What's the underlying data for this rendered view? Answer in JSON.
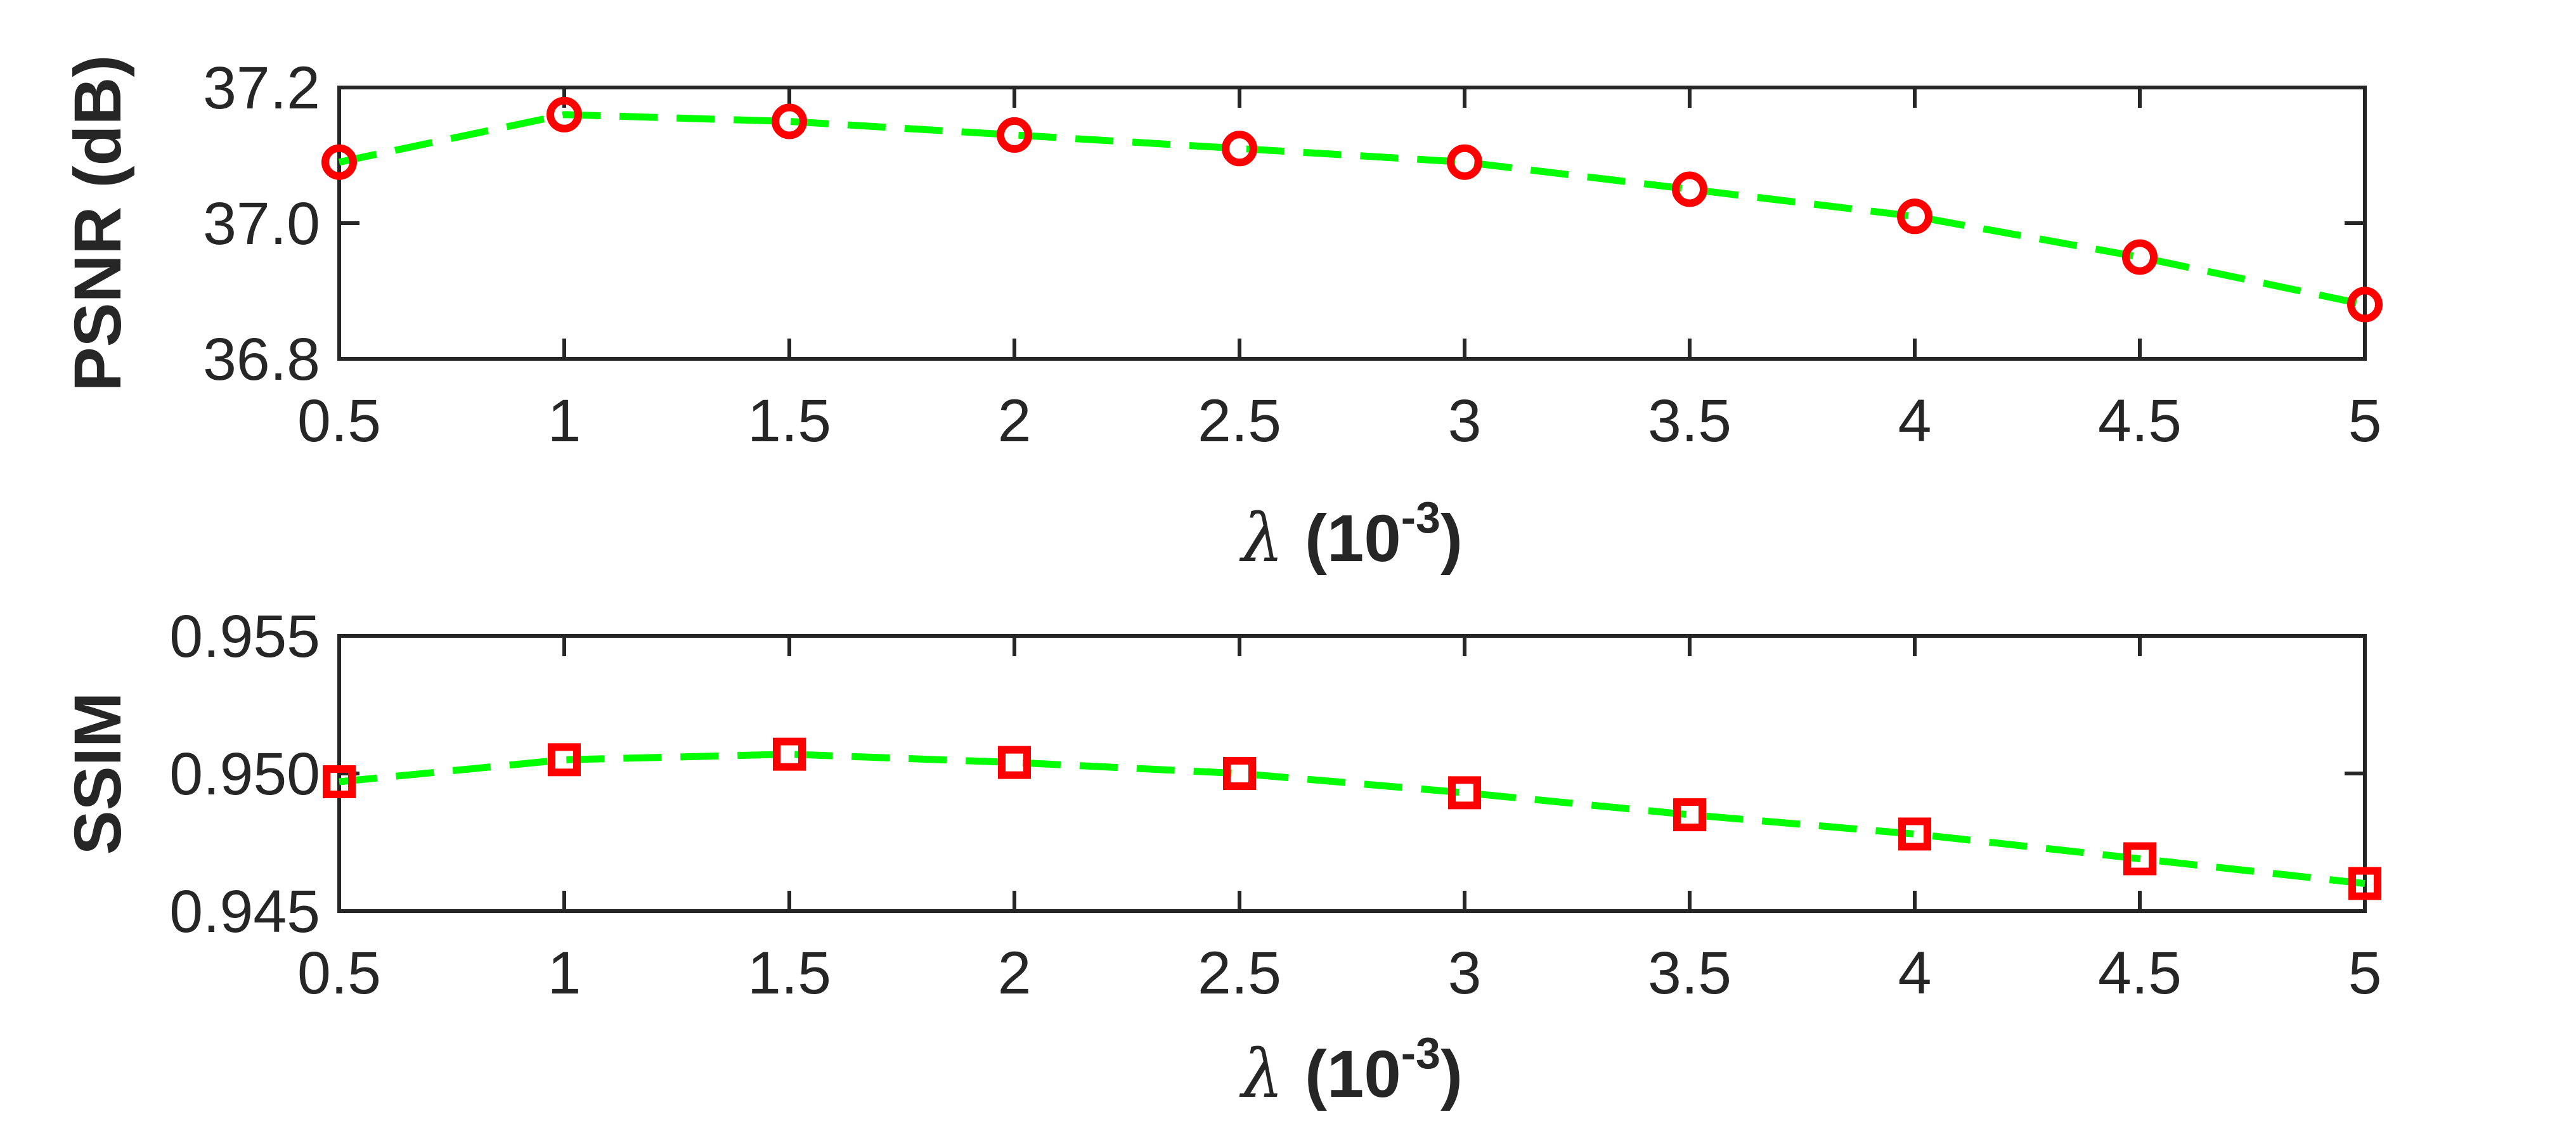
{
  "chart_data": [
    {
      "type": "line",
      "x": [
        0.5,
        1,
        1.5,
        2,
        2.5,
        3,
        3.5,
        4,
        4.5,
        5
      ],
      "series": [
        {
          "values": [
            37.09,
            37.16,
            37.15,
            37.13,
            37.11,
            37.09,
            37.05,
            37.01,
            36.95,
            36.88
          ]
        }
      ],
      "marker": "circle",
      "line_color": "#00ff00",
      "marker_color": "#ff0000",
      "line_style": "dashed",
      "xlabel_symbol": "λ",
      "xlabel_unit": "(10",
      "xlabel_exp": "-3",
      "xlabel_close": ")",
      "ylabel": "PSNR (dB)",
      "xlim": [
        0.5,
        5
      ],
      "ylim": [
        36.8,
        37.2
      ],
      "xticks": [
        "0.5",
        "1",
        "1.5",
        "2",
        "2.5",
        "3",
        "3.5",
        "4",
        "4.5",
        "5"
      ],
      "yticks": [
        "36.8",
        "37.0",
        "37.2"
      ],
      "grid": false
    },
    {
      "type": "line",
      "x": [
        0.5,
        1,
        1.5,
        2,
        2.5,
        3,
        3.5,
        4,
        4.5,
        5
      ],
      "series": [
        {
          "values": [
            0.9497,
            0.9505,
            0.9507,
            0.9504,
            0.95,
            0.9493,
            0.9485,
            0.9478,
            0.9469,
            0.946
          ]
        }
      ],
      "marker": "square",
      "line_color": "#00ff00",
      "marker_color": "#ff0000",
      "line_style": "dashed",
      "xlabel_symbol": "λ",
      "xlabel_unit": "(10",
      "xlabel_exp": "-3",
      "xlabel_close": ")",
      "ylabel": "SSIM",
      "xlim": [
        0.5,
        5
      ],
      "ylim": [
        0.945,
        0.955
      ],
      "xticks": [
        "0.5",
        "1",
        "1.5",
        "2",
        "2.5",
        "3",
        "3.5",
        "4",
        "4.5",
        "5"
      ],
      "yticks": [
        "0.945",
        "0.950",
        "0.955"
      ],
      "grid": false
    }
  ]
}
